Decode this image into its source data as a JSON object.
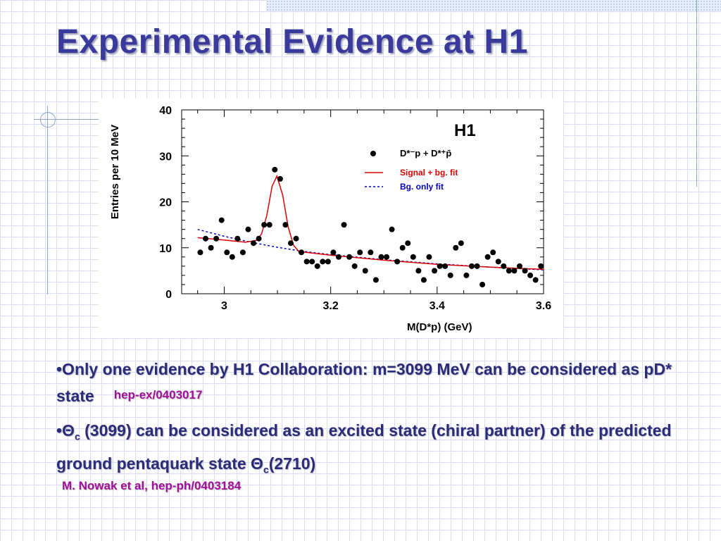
{
  "slide": {
    "title": "Experimental Evidence at H1",
    "bullet1": {
      "lead": "•Only one evidence by H1 Collaboration: m=3099 MeV can be considered as pD* state",
      "ref": "hep-ex/0403017"
    },
    "bullet2": {
      "p1": "•Θ",
      "sub1": "c",
      "p2": " (3099) can be considered as an excited state (chiral partner) of the predicted ground pentaquark state Θ",
      "sub2": "c",
      "p3": "(2710)"
    },
    "reference": "M. Nowak et al, hep-ph/0403184"
  },
  "chart_data": {
    "type": "scatter",
    "title": "H1",
    "xlabel": "M(D*p) (GeV)",
    "ylabel": "Entries per 10 MeV",
    "xlim": [
      2.92,
      3.6
    ],
    "ylim": [
      0,
      40
    ],
    "xticks": [
      3,
      3.2,
      3.4,
      3.6
    ],
    "xtick_labels": [
      "3",
      "3.2",
      "3.4",
      "3.6"
    ],
    "yticks": [
      0,
      10,
      20,
      30,
      40
    ],
    "ytick_labels": [
      "0",
      "10",
      "20",
      "30",
      "40"
    ],
    "grid": false,
    "legend_position": "top-right",
    "legend": [
      "D*⁻p + D*⁺p̄",
      "Signal + bg. fit",
      "Bg. only fit"
    ],
    "colors": {
      "data": "#000000",
      "signal_fit": "#dd0000",
      "bg_fit": "#0000cc"
    },
    "series": [
      {
        "name": "D*⁻p + D*⁺p̄",
        "points": [
          [
            2.955,
            9
          ],
          [
            2.965,
            12
          ],
          [
            2.975,
            10
          ],
          [
            2.985,
            12
          ],
          [
            2.995,
            16
          ],
          [
            3.005,
            9
          ],
          [
            3.015,
            8
          ],
          [
            3.025,
            12
          ],
          [
            3.035,
            9
          ],
          [
            3.045,
            14
          ],
          [
            3.055,
            11
          ],
          [
            3.065,
            12
          ],
          [
            3.075,
            15
          ],
          [
            3.085,
            15
          ],
          [
            3.095,
            27
          ],
          [
            3.105,
            25
          ],
          [
            3.115,
            15
          ],
          [
            3.125,
            11
          ],
          [
            3.135,
            12
          ],
          [
            3.145,
            9
          ],
          [
            3.155,
            7
          ],
          [
            3.165,
            7
          ],
          [
            3.175,
            6
          ],
          [
            3.185,
            7
          ],
          [
            3.195,
            7
          ],
          [
            3.205,
            9
          ],
          [
            3.215,
            8
          ],
          [
            3.225,
            15
          ],
          [
            3.235,
            8
          ],
          [
            3.245,
            6
          ],
          [
            3.255,
            9
          ],
          [
            3.265,
            5
          ],
          [
            3.275,
            9
          ],
          [
            3.285,
            3
          ],
          [
            3.295,
            8
          ],
          [
            3.305,
            8
          ],
          [
            3.315,
            14
          ],
          [
            3.325,
            7
          ],
          [
            3.335,
            10
          ],
          [
            3.345,
            11
          ],
          [
            3.355,
            8
          ],
          [
            3.365,
            5
          ],
          [
            3.375,
            3
          ],
          [
            3.385,
            8
          ],
          [
            3.395,
            5
          ],
          [
            3.405,
            6
          ],
          [
            3.415,
            6
          ],
          [
            3.425,
            4
          ],
          [
            3.435,
            10
          ],
          [
            3.445,
            11
          ],
          [
            3.455,
            4
          ],
          [
            3.465,
            6
          ],
          [
            3.475,
            6
          ],
          [
            3.485,
            2
          ],
          [
            3.495,
            8
          ],
          [
            3.505,
            9
          ],
          [
            3.515,
            7
          ],
          [
            3.525,
            6
          ],
          [
            3.535,
            5
          ],
          [
            3.545,
            5
          ],
          [
            3.555,
            6
          ],
          [
            3.565,
            5
          ],
          [
            3.575,
            4
          ],
          [
            3.585,
            3
          ],
          [
            3.595,
            6
          ]
        ]
      },
      {
        "name": "Signal + bg. fit",
        "points": [
          [
            2.95,
            12.2
          ],
          [
            3.0,
            11.7
          ],
          [
            3.04,
            11.2
          ],
          [
            3.06,
            11.6
          ],
          [
            3.07,
            13.0
          ],
          [
            3.08,
            17.0
          ],
          [
            3.09,
            23.4
          ],
          [
            3.099,
            25.6
          ],
          [
            3.11,
            21.4
          ],
          [
            3.12,
            14.6
          ],
          [
            3.13,
            10.6
          ],
          [
            3.14,
            9.2
          ],
          [
            3.2,
            8.4
          ],
          [
            3.3,
            7.3
          ],
          [
            3.4,
            6.4
          ],
          [
            3.5,
            5.8
          ],
          [
            3.6,
            5.3
          ]
        ]
      },
      {
        "name": "Bg. only fit",
        "points": [
          [
            2.95,
            14.0
          ],
          [
            3.0,
            12.5
          ],
          [
            3.05,
            11.2
          ],
          [
            3.1,
            10.1
          ],
          [
            3.15,
            9.2
          ],
          [
            3.2,
            8.5
          ],
          [
            3.3,
            7.4
          ],
          [
            3.4,
            6.5
          ],
          [
            3.5,
            5.8
          ],
          [
            3.6,
            5.2
          ]
        ]
      }
    ]
  }
}
